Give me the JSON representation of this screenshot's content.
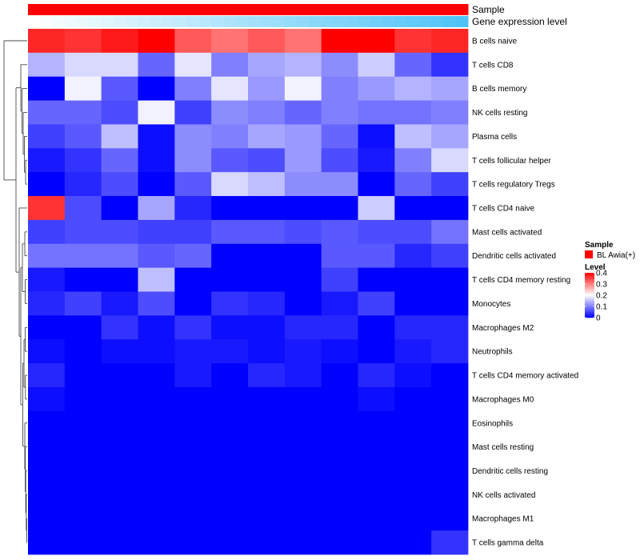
{
  "chart_data": {
    "type": "heatmap",
    "title": "",
    "annotations": [
      {
        "name": "Sample",
        "type": "categorical",
        "values": [
          "BL Awia(+)",
          "BL Awia(+)",
          "BL Awia(+)",
          "BL Awia(+)",
          "BL Awia(+)",
          "BL Awia(+)",
          "BL Awia(+)",
          "BL Awia(+)",
          "BL Awia(+)",
          "BL Awia(+)",
          "BL Awia(+)",
          "BL Awia(+)",
          "BL Awia(+)",
          "BL Awia(+)",
          "BL Awia(+)",
          "BL Awia(+)",
          "BL Awia(+)",
          "BL Awia(+)",
          "BL Awia(+)",
          "BL Awia(+)",
          "BL Awia(+)",
          "BL Awia(+)",
          "BL Awia(+)",
          "BL Awia(+)",
          "BL Awia(+)",
          "BL Awia(+)",
          "BL Awia(+)",
          "BL Awia(+)",
          "BL Awia(+)",
          "BL Awia(+)",
          "BL Awia(+)",
          "BL Awia(+)",
          "BL Awia(+)",
          "BL Awia(+)",
          "BL Awia(+)",
          "BL Awia(+)"
        ],
        "color": "#ff0000"
      },
      {
        "name": "Gene expression level",
        "type": "continuous",
        "values": [
          0.0,
          0.03,
          0.06,
          0.09,
          0.11,
          0.14,
          0.17,
          0.2,
          0.23,
          0.26,
          0.29,
          0.31,
          0.34,
          0.37,
          0.4,
          0.43,
          0.46,
          0.49,
          0.51,
          0.54,
          0.57,
          0.6,
          0.63,
          0.66,
          0.69,
          0.71,
          0.74,
          0.77,
          0.8,
          0.83,
          0.86,
          0.89,
          0.91,
          0.94,
          0.97,
          1.0
        ],
        "colors": [
          "#ffffff",
          "#4fc3f7"
        ]
      }
    ],
    "rows": [
      "B cells naive",
      "T cells CD8",
      "B cells memory",
      "NK cells resting",
      "Plasma cells",
      "T cells follicular helper",
      "T cells regulatory  Tregs",
      "T cells CD4 naive",
      "Mast cells activated",
      "Dendritic cells activated",
      "T cells CD4 memory resting",
      "Monocytes",
      "Macrophages M2",
      "Neutrophils",
      "T cells CD4 memory activated",
      "Macrophages M0",
      "Eosinophils",
      "Mast cells resting",
      "Dendritic cells resting",
      "NK cells activated",
      "Macrophages M1",
      "T cells gamma delta"
    ],
    "values": [
      [
        0.37,
        0.36,
        0.38,
        0.4,
        0.33,
        0.31,
        0.33,
        0.31,
        0.4,
        0.4,
        0.36,
        0.37
      ],
      [
        0.14,
        0.17,
        0.17,
        0.08,
        0.18,
        0.1,
        0.13,
        0.14,
        0.11,
        0.16,
        0.08,
        0.04
      ],
      [
        0.0,
        0.19,
        0.07,
        0.0,
        0.1,
        0.18,
        0.12,
        0.19,
        0.1,
        0.12,
        0.14,
        0.13
      ],
      [
        0.08,
        0.08,
        0.06,
        0.19,
        0.05,
        0.11,
        0.1,
        0.08,
        0.1,
        0.09,
        0.09,
        0.1
      ],
      [
        0.05,
        0.07,
        0.15,
        0.01,
        0.11,
        0.1,
        0.13,
        0.12,
        0.08,
        0.01,
        0.15,
        0.13
      ],
      [
        0.02,
        0.04,
        0.08,
        0.01,
        0.11,
        0.07,
        0.06,
        0.12,
        0.06,
        0.02,
        0.1,
        0.17
      ],
      [
        0.0,
        0.03,
        0.06,
        0.0,
        0.07,
        0.17,
        0.15,
        0.11,
        0.11,
        0.0,
        0.08,
        0.05
      ],
      [
        0.36,
        0.06,
        0.0,
        0.13,
        0.03,
        0.0,
        0.0,
        0.0,
        0.0,
        0.16,
        0.0,
        0.0
      ],
      [
        0.05,
        0.06,
        0.06,
        0.05,
        0.05,
        0.07,
        0.07,
        0.06,
        0.07,
        0.06,
        0.06,
        0.09
      ],
      [
        0.09,
        0.09,
        0.09,
        0.07,
        0.08,
        0.0,
        0.0,
        0.0,
        0.07,
        0.07,
        0.03,
        0.05
      ],
      [
        0.02,
        0.0,
        0.0,
        0.15,
        0.0,
        0.0,
        0.0,
        0.0,
        0.05,
        0.0,
        0.0,
        0.0
      ],
      [
        0.03,
        0.05,
        0.02,
        0.06,
        0.0,
        0.04,
        0.03,
        0.0,
        0.02,
        0.05,
        0.0,
        0.0
      ],
      [
        0.0,
        0.0,
        0.04,
        0.01,
        0.04,
        0.01,
        0.01,
        0.03,
        0.03,
        0.0,
        0.03,
        0.03
      ],
      [
        0.01,
        0.0,
        0.01,
        0.01,
        0.02,
        0.02,
        0.01,
        0.02,
        0.01,
        0.0,
        0.02,
        0.03
      ],
      [
        0.03,
        0.0,
        0.0,
        0.0,
        0.02,
        0.0,
        0.03,
        0.02,
        0.0,
        0.03,
        0.01,
        0.0
      ],
      [
        0.01,
        0.0,
        0.0,
        0.0,
        0.0,
        0.0,
        0.0,
        0.0,
        0.0,
        0.01,
        0.0,
        0.0
      ],
      [
        0.0,
        0.0,
        0.0,
        0.0,
        0.0,
        0.0,
        0.0,
        0.0,
        0.0,
        0.0,
        0.0,
        0.0
      ],
      [
        0.0,
        0.0,
        0.0,
        0.0,
        0.0,
        0.0,
        0.0,
        0.0,
        0.0,
        0.0,
        0.0,
        0.0
      ],
      [
        0.0,
        0.0,
        0.0,
        0.0,
        0.0,
        0.0,
        0.0,
        0.0,
        0.0,
        0.0,
        0.0,
        0.0
      ],
      [
        0.0,
        0.0,
        0.0,
        0.0,
        0.0,
        0.0,
        0.0,
        0.0,
        0.0,
        0.0,
        0.0,
        0.0
      ],
      [
        0.0,
        0.0,
        0.0,
        0.0,
        0.0,
        0.0,
        0.0,
        0.0,
        0.0,
        0.0,
        0.0,
        0.0
      ],
      [
        0.0,
        0.0,
        0.0,
        0.0,
        0.0,
        0.0,
        0.0,
        0.0,
        0.0,
        0.0,
        0.0,
        0.04
      ]
    ],
    "color_scale": {
      "title": "Level",
      "min": 0,
      "max": 0.4,
      "ticks": [
        0,
        0.1,
        0.2,
        0.3,
        0.4
      ],
      "colors": [
        "#0000ff",
        "#ffffff",
        "#ff0000"
      ],
      "midpoint": 0.2
    },
    "legend_sample": {
      "title": "Sample",
      "entries": [
        {
          "label": "BL Awia(+)",
          "color": "#ff0000"
        }
      ]
    },
    "legend_placement": "right"
  }
}
